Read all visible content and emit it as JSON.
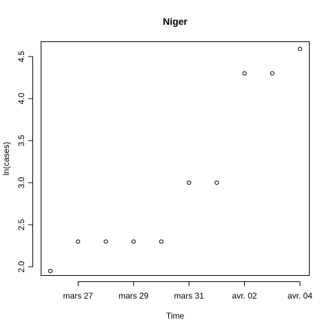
{
  "chart_data": {
    "type": "scatter",
    "title": "Niger",
    "xlabel": "Time",
    "ylabel": "ln(cases)",
    "grid": false,
    "marker": "open-circle",
    "x": [
      "2020-03-26",
      "2020-03-27",
      "2020-03-28",
      "2020-03-29",
      "2020-03-30",
      "2020-03-31",
      "2020-04-01",
      "2020-04-02",
      "2020-04-03",
      "2020-04-04"
    ],
    "y": [
      1.95,
      2.3,
      2.3,
      2.3,
      2.3,
      3.0,
      3.0,
      4.3,
      4.3,
      4.59
    ],
    "x_ticks": [
      {
        "date": "2020-03-27",
        "label": "mars 27"
      },
      {
        "date": "2020-03-29",
        "label": "mars 29"
      },
      {
        "date": "2020-03-31",
        "label": "mars 31"
      },
      {
        "date": "2020-04-02",
        "label": "avr. 02"
      },
      {
        "date": "2020-04-04",
        "label": "avr. 04"
      }
    ],
    "y_ticks": [
      "2.0",
      "2.5",
      "3.0",
      "3.5",
      "4.0",
      "4.5"
    ],
    "xlim": [
      "2020-03-26",
      "2020-04-04"
    ],
    "ylim": [
      1.95,
      4.59
    ]
  }
}
